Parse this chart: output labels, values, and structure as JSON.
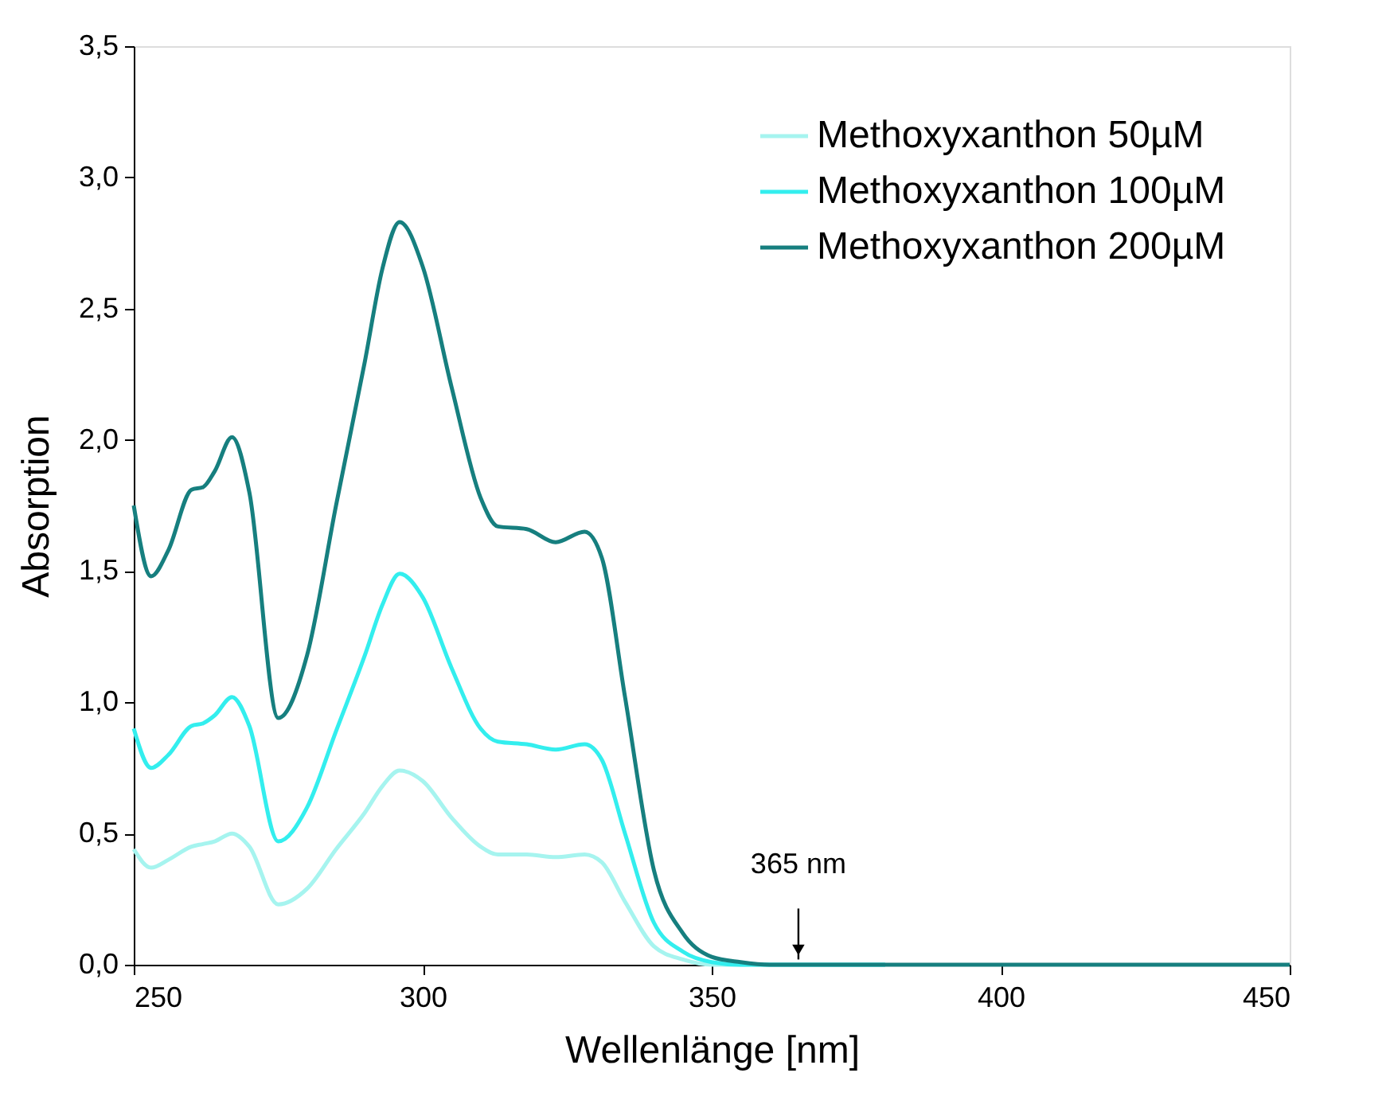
{
  "chart_data": {
    "type": "line",
    "xlabel": "Wellenlänge [nm]",
    "ylabel": "Absorption",
    "x": [
      250,
      253,
      256,
      260,
      262,
      264,
      267,
      270,
      275,
      280,
      285,
      290,
      293,
      296,
      300,
      305,
      310,
      313,
      318,
      323,
      328,
      331,
      335,
      340,
      345,
      350,
      355,
      360,
      380,
      400,
      450
    ],
    "series": [
      {
        "name": "Methoxyxanthon 50µM",
        "color": "#a6f4ef",
        "values": [
          0.44,
          0.37,
          0.4,
          0.45,
          0.46,
          0.47,
          0.5,
          0.45,
          0.23,
          0.29,
          0.44,
          0.58,
          0.68,
          0.74,
          0.7,
          0.56,
          0.45,
          0.42,
          0.42,
          0.41,
          0.42,
          0.39,
          0.24,
          0.07,
          0.02,
          0,
          0,
          0,
          0,
          null,
          null
        ]
      },
      {
        "name": "Methoxyxanthon 100µM",
        "color": "#33eeee",
        "values": [
          0.9,
          0.75,
          0.8,
          0.91,
          0.92,
          0.95,
          1.02,
          0.91,
          0.47,
          0.6,
          0.89,
          1.18,
          1.37,
          1.49,
          1.4,
          1.13,
          0.9,
          0.85,
          0.84,
          0.82,
          0.84,
          0.78,
          0.5,
          0.16,
          0.05,
          0.01,
          0,
          0,
          0,
          null,
          null
        ]
      },
      {
        "name": "Methoxyxanthon 200µM",
        "color": "#167f7f",
        "values": [
          1.75,
          1.48,
          1.58,
          1.81,
          1.82,
          1.88,
          2.01,
          1.8,
          0.94,
          1.18,
          1.75,
          2.3,
          2.65,
          2.83,
          2.66,
          2.2,
          1.78,
          1.67,
          1.66,
          1.61,
          1.65,
          1.55,
          1.02,
          0.36,
          0.12,
          0.03,
          0.01,
          0,
          0,
          0,
          0
        ]
      }
    ],
    "xlim": [
      250,
      450
    ],
    "xticks": [
      250,
      300,
      350,
      400,
      450
    ],
    "ylim": [
      0,
      3.5
    ],
    "yticks": [
      {
        "value": 0,
        "label": "0,0"
      },
      {
        "value": 0.5,
        "label": "0,5"
      },
      {
        "value": 1,
        "label": "1,0"
      },
      {
        "value": 1.5,
        "label": "1,5"
      },
      {
        "value": 2,
        "label": "2,0"
      },
      {
        "value": 2.5,
        "label": "2,5"
      },
      {
        "value": 3,
        "label": "3,0"
      },
      {
        "value": 3.5,
        "label": "3,5"
      }
    ],
    "annotations": [
      {
        "text": "365 nm",
        "x": 365,
        "y": 0.02
      }
    ],
    "grid": false,
    "legend": "top right",
    "line_style": "solid",
    "marker": "none"
  }
}
